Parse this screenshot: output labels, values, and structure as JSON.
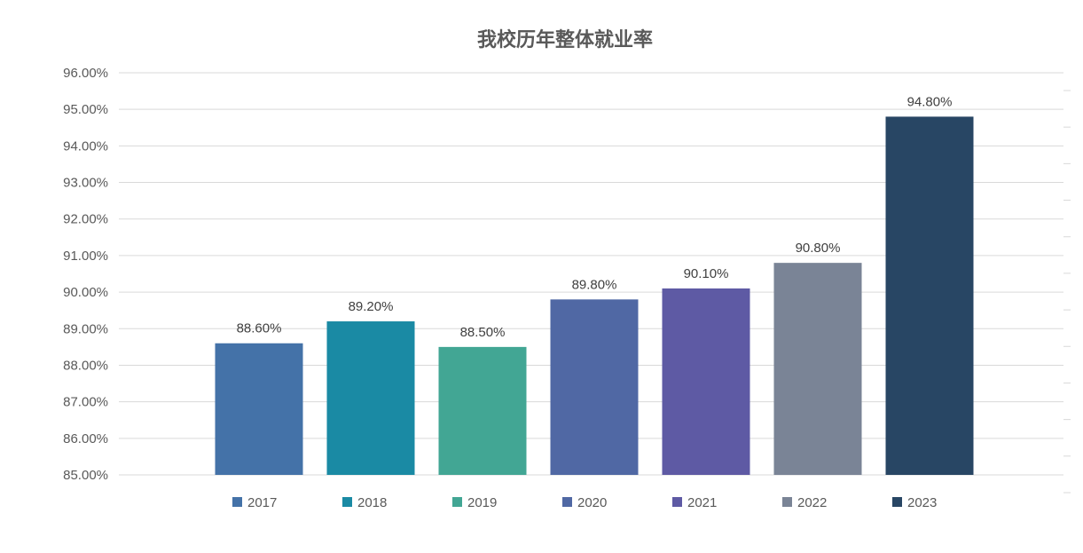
{
  "chart_data": {
    "type": "bar",
    "title": "我校历年整体就业率",
    "xlabel": "",
    "ylabel": "",
    "categories": [
      "2017",
      "2018",
      "2019",
      "2020",
      "2021",
      "2022",
      "2023"
    ],
    "values": [
      88.6,
      89.2,
      88.5,
      89.8,
      90.1,
      90.8,
      94.8
    ],
    "data_labels": [
      "88.60%",
      "89.20%",
      "88.50%",
      "89.80%",
      "90.10%",
      "90.80%",
      "94.80%"
    ],
    "colors": [
      "#4472a8",
      "#1a8aa4",
      "#42a694",
      "#5068a4",
      "#5e5aa4",
      "#7a8496",
      "#284664"
    ],
    "ylim": [
      85,
      96
    ],
    "y_ticks": [
      85,
      86,
      87,
      88,
      89,
      90,
      91,
      92,
      93,
      94,
      95,
      96
    ],
    "y_tick_labels": [
      "85.00%",
      "86.00%",
      "87.00%",
      "88.00%",
      "89.00%",
      "90.00%",
      "91.00%",
      "92.00%",
      "93.00%",
      "94.00%",
      "95.00%",
      "96.00%"
    ],
    "grid": true,
    "legend_position": "bottom",
    "legend": [
      "2017",
      "2018",
      "2019",
      "2020",
      "2021",
      "2022",
      "2023"
    ]
  }
}
